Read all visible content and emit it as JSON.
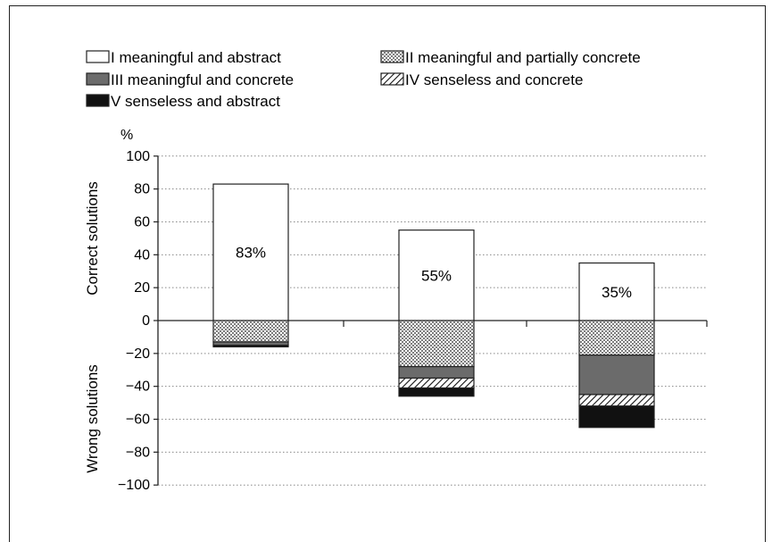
{
  "chart_data": {
    "type": "bar",
    "stacked": true,
    "y_unit_label": "%",
    "ylabel_positive": "Correct  solutions",
    "ylabel_negative": "Wrong solutions",
    "ylim": [
      -100,
      100
    ],
    "yticks": [
      100,
      80,
      60,
      40,
      20,
      0,
      -20,
      -40,
      -60,
      -80,
      -100
    ],
    "ytick_labels": [
      "100",
      "80",
      "60",
      "40",
      "20",
      "0",
      "−20",
      "−40",
      "−60",
      "−80",
      "−100"
    ],
    "grid": "horizontal dotted",
    "legend_placement": "top",
    "categories": [
      "",
      "",
      ""
    ],
    "series": [
      {
        "name": "I meaningful and abstract",
        "pattern": "white",
        "values": [
          83,
          55,
          35
        ]
      },
      {
        "name": "II meaningful and partially concrete",
        "pattern": "dots",
        "values": [
          -13,
          -28,
          -21
        ]
      },
      {
        "name": "III meaningful and concrete",
        "pattern": "gray",
        "values": [
          -2,
          -7,
          -24
        ]
      },
      {
        "name": "IV senseless and concrete",
        "pattern": "hatch",
        "values": [
          0,
          -6,
          -7
        ]
      },
      {
        "name": "V senseless and abstract",
        "pattern": "black",
        "values": [
          -1,
          -5,
          -13
        ]
      }
    ],
    "data_labels": [
      "83%",
      "55%",
      "35%"
    ]
  },
  "colors": {
    "white": "#ffffff",
    "gray": "#6b6b6b",
    "black": "#111111",
    "stroke": "#222222",
    "grid": "#888888"
  }
}
